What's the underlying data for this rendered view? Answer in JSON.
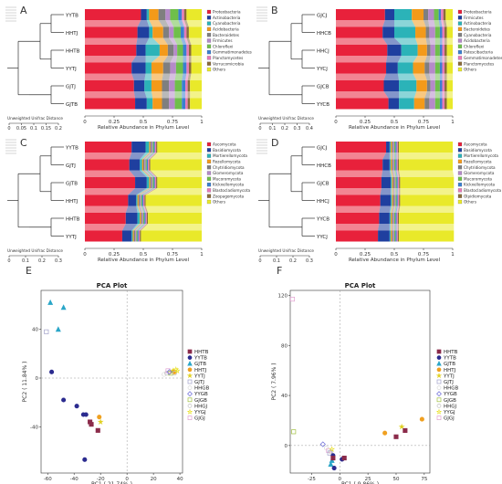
{
  "panels": [
    {
      "letter": "A",
      "samples": [
        "YYTB",
        "HHTJ",
        "HHTB",
        "YYTJ",
        "GJTJ",
        "GJTB"
      ],
      "tree_label": "Unweighted Unifrac Distance",
      "tree_ticks": [
        "0",
        "0.05",
        "0.1",
        "0.15",
        "0.2"
      ],
      "x_ticks": [
        "0",
        "0.25",
        "0.5",
        "0.75",
        "1"
      ],
      "x_label": "Relative Abundance in Phylum Level",
      "legend": [
        "Proteobacteria",
        "Actinobacteria",
        "Cyanobacteria",
        "Acidobacteria",
        "Bacteroidetes",
        "Firmicutes",
        "Chloroflexi",
        "Gemmatimonadetes",
        "Planctomycetes",
        "Verrucomicrobia",
        "Others"
      ],
      "colors": [
        "#e8213b",
        "#1f3f9f",
        "#2bb3b8",
        "#f39a1a",
        "#7f7f7f",
        "#b58ac9",
        "#6fbf4a",
        "#3a7fd0",
        "#e879b7",
        "#8a6b3a",
        "#e9e92a"
      ],
      "bars": [
        [
          0.48,
          0.05,
          0.02,
          0.08,
          0.06,
          0.04,
          0.07,
          0.03,
          0.02,
          0.02,
          0.13
        ],
        [
          0.45,
          0.1,
          0.03,
          0.09,
          0.05,
          0.04,
          0.06,
          0.03,
          0.02,
          0.02,
          0.11
        ],
        [
          0.44,
          0.08,
          0.12,
          0.07,
          0.05,
          0.03,
          0.05,
          0.03,
          0.02,
          0.02,
          0.09
        ],
        [
          0.4,
          0.12,
          0.05,
          0.1,
          0.06,
          0.05,
          0.06,
          0.03,
          0.02,
          0.02,
          0.09
        ],
        [
          0.42,
          0.09,
          0.06,
          0.09,
          0.06,
          0.05,
          0.06,
          0.03,
          0.02,
          0.02,
          0.1
        ],
        [
          0.43,
          0.1,
          0.05,
          0.08,
          0.06,
          0.05,
          0.06,
          0.03,
          0.02,
          0.02,
          0.1
        ]
      ]
    },
    {
      "letter": "B",
      "samples": [
        "GJCJ",
        "HHCB",
        "HHCJ",
        "YYCJ",
        "GJCB",
        "YYCB"
      ],
      "tree_label": "Unweighted Unifrac Distance",
      "tree_ticks": [
        "0",
        "0.1",
        "0.2",
        "0.3",
        "0.4"
      ],
      "x_ticks": [
        "0",
        "0.25",
        "0.5",
        "0.75",
        "1"
      ],
      "x_label": "Relative Abundance in Phylum Level",
      "legend": [
        "Proteobacteria",
        "Firmicutes",
        "Actinobacteria",
        "Bacteroidetes",
        "Cyanobacteria",
        "Acidobacteria",
        "Chloroflexi",
        "Patescibacteria",
        "Gemmatimonadetes",
        "Planctomycetes",
        "Others"
      ],
      "colors": [
        "#e8213b",
        "#1f3f9f",
        "#2bb3b8",
        "#f39a1a",
        "#7f7f7f",
        "#b58ac9",
        "#6fbf4a",
        "#3a7fd0",
        "#e879b7",
        "#8a6b3a",
        "#e9e92a"
      ],
      "bars": [
        [
          0.42,
          0.08,
          0.15,
          0.1,
          0.04,
          0.05,
          0.04,
          0.02,
          0.02,
          0.02,
          0.06
        ],
        [
          0.4,
          0.1,
          0.18,
          0.09,
          0.03,
          0.05,
          0.04,
          0.02,
          0.02,
          0.02,
          0.05
        ],
        [
          0.44,
          0.12,
          0.14,
          0.08,
          0.03,
          0.04,
          0.04,
          0.02,
          0.02,
          0.02,
          0.05
        ],
        [
          0.43,
          0.1,
          0.13,
          0.1,
          0.04,
          0.05,
          0.04,
          0.02,
          0.02,
          0.02,
          0.05
        ],
        [
          0.41,
          0.13,
          0.15,
          0.09,
          0.03,
          0.04,
          0.04,
          0.02,
          0.02,
          0.02,
          0.05
        ],
        [
          0.45,
          0.09,
          0.13,
          0.09,
          0.04,
          0.05,
          0.04,
          0.02,
          0.02,
          0.02,
          0.05
        ]
      ]
    },
    {
      "letter": "C",
      "samples": [
        "YYTB",
        "GJTJ",
        "GJTB",
        "HHTJ",
        "HHTB",
        "YYTJ"
      ],
      "tree_label": "Unweighted Unifrac Distance",
      "tree_ticks": [
        "0",
        "0.1",
        "0.2",
        "0.3"
      ],
      "x_ticks": [
        "0",
        "0.25",
        "0.5",
        "0.75",
        "1"
      ],
      "x_label": "Relative Abundance in Phylum Level",
      "legend": [
        "Ascomycota",
        "Basidiomycota",
        "Mortierellomycota",
        "Rozellomycota",
        "Chytridiomycota",
        "Glomeromycota",
        "Mucoromycota",
        "Kickxellomycota",
        "Blastocladiomycota",
        "Zoopagomycota",
        "Others"
      ],
      "colors": [
        "#e8213b",
        "#1f3f9f",
        "#2bb3b8",
        "#f39a1a",
        "#7f7f7f",
        "#b58ac9",
        "#6fbf4a",
        "#3a7fd0",
        "#e879b7",
        "#8a6b3a",
        "#e9e92a"
      ],
      "bars": [
        [
          0.4,
          0.12,
          0.03,
          0.01,
          0.01,
          0.01,
          0.01,
          0.01,
          0.01,
          0.01,
          0.38
        ],
        [
          0.38,
          0.09,
          0.02,
          0.01,
          0.01,
          0.01,
          0.01,
          0.01,
          0.01,
          0.01,
          0.44
        ],
        [
          0.43,
          0.1,
          0.02,
          0.01,
          0.01,
          0.01,
          0.01,
          0.01,
          0.01,
          0.01,
          0.38
        ],
        [
          0.37,
          0.07,
          0.01,
          0.01,
          0.01,
          0.01,
          0.01,
          0.01,
          0.01,
          0.01,
          0.48
        ],
        [
          0.35,
          0.1,
          0.02,
          0.01,
          0.01,
          0.01,
          0.01,
          0.01,
          0.01,
          0.01,
          0.46
        ],
        [
          0.32,
          0.08,
          0.01,
          0.01,
          0.01,
          0.01,
          0.01,
          0.01,
          0.01,
          0.01,
          0.52
        ]
      ]
    },
    {
      "letter": "D",
      "samples": [
        "GJCJ",
        "HHCB",
        "GJCB",
        "HHCJ",
        "YYCB",
        "YYCJ"
      ],
      "tree_label": "Unweighted Unifrac Distance",
      "tree_ticks": [
        "0",
        "0.1",
        "0.2",
        "0.3"
      ],
      "x_ticks": [
        "0",
        "0.25",
        "0.5",
        "0.75",
        "1"
      ],
      "x_label": "Relative Abundance in Phylum Level",
      "legend": [
        "Ascomycota",
        "Basidiomycota",
        "Mortierellomycota",
        "Rozellomycota",
        "Chytridiomycota",
        "Glomeromycota",
        "Mucoromycota",
        "Kickxellomycota",
        "Blastocladiomycota",
        "Olpidiomycota",
        "Others"
      ],
      "colors": [
        "#e8213b",
        "#1f3f9f",
        "#2bb3b8",
        "#f39a1a",
        "#7f7f7f",
        "#b58ac9",
        "#6fbf4a",
        "#3a7fd0",
        "#e879b7",
        "#8a6b3a",
        "#e9e92a"
      ],
      "bars": [
        [
          0.43,
          0.03,
          0.01,
          0.01,
          0.01,
          0.01,
          0.01,
          0.01,
          0.01,
          0.01,
          0.46
        ],
        [
          0.4,
          0.06,
          0.01,
          0.01,
          0.01,
          0.01,
          0.01,
          0.01,
          0.01,
          0.01,
          0.46
        ],
        [
          0.39,
          0.08,
          0.01,
          0.01,
          0.01,
          0.01,
          0.01,
          0.01,
          0.01,
          0.01,
          0.46
        ],
        [
          0.38,
          0.09,
          0.01,
          0.01,
          0.01,
          0.01,
          0.01,
          0.01,
          0.01,
          0.01,
          0.46
        ],
        [
          0.37,
          0.09,
          0.01,
          0.01,
          0.01,
          0.01,
          0.01,
          0.01,
          0.01,
          0.01,
          0.47
        ],
        [
          0.36,
          0.1,
          0.01,
          0.01,
          0.01,
          0.01,
          0.01,
          0.01,
          0.01,
          0.01,
          0.47
        ]
      ]
    }
  ],
  "chart_data": [
    {
      "type": "scatter",
      "letter": "E",
      "title": "PCA Plot",
      "xlabel": "PC1 ( 21.74% )",
      "ylabel": "PC2 ( 11.84% )",
      "xlim": [
        -65,
        42
      ],
      "ylim": [
        -78,
        72
      ],
      "xticks": [
        -60,
        -40,
        -20,
        0,
        20,
        40
      ],
      "yticks": [
        -40,
        0,
        40
      ],
      "legend": [
        {
          "name": "HHTB",
          "color": "#8b2b4a",
          "marker": "square"
        },
        {
          "name": "YYTB",
          "color": "#2b2b8f",
          "marker": "circle"
        },
        {
          "name": "GJTB",
          "color": "#2aa6c8",
          "marker": "triangle"
        },
        {
          "name": "HHTJ",
          "color": "#f0a020",
          "marker": "circle"
        },
        {
          "name": "YYTJ",
          "color": "#e0d020",
          "marker": "star"
        },
        {
          "name": "GJTJ",
          "color": "#a0a0c8",
          "marker": "square-open"
        },
        {
          "name": "HHGB",
          "color": "#d8d8d8",
          "marker": "circle-open"
        },
        {
          "name": "YYGB",
          "color": "#6a6ad8",
          "marker": "diamond-open"
        },
        {
          "name": "GJGB",
          "color": "#a0c040",
          "marker": "square-open"
        },
        {
          "name": "HHGJ",
          "color": "#c0c0c0",
          "marker": "circle-open"
        },
        {
          "name": "YYGJ",
          "color": "#e8e020",
          "marker": "star-open"
        },
        {
          "name": "GJGJ",
          "color": "#e0a0d0",
          "marker": "square-open"
        }
      ],
      "points": [
        {
          "s": "GJTB",
          "x": -58,
          "y": 62
        },
        {
          "s": "GJTB",
          "x": -48,
          "y": 58
        },
        {
          "s": "GJTB",
          "x": -52,
          "y": 40
        },
        {
          "s": "GJTJ",
          "x": -61,
          "y": 38
        },
        {
          "s": "YYTB",
          "x": -57,
          "y": 5
        },
        {
          "s": "YYTB",
          "x": -48,
          "y": -18
        },
        {
          "s": "YYTB",
          "x": -38,
          "y": -23
        },
        {
          "s": "YYTB",
          "x": -33,
          "y": -30
        },
        {
          "s": "YYTB",
          "x": -31,
          "y": -30
        },
        {
          "s": "HHTB",
          "x": -28,
          "y": -36
        },
        {
          "s": "HHTB",
          "x": -27,
          "y": -38
        },
        {
          "s": "HHTJ",
          "x": -21,
          "y": -32
        },
        {
          "s": "YYTJ",
          "x": -20,
          "y": -36
        },
        {
          "s": "HHTB",
          "x": -22,
          "y": -43
        },
        {
          "s": "YYTB",
          "x": -32,
          "y": -67
        },
        {
          "s": "HHGB",
          "x": 28,
          "y": 3
        },
        {
          "s": "HHGJ",
          "x": 30,
          "y": 4
        },
        {
          "s": "YYGJ",
          "x": 34,
          "y": 5
        },
        {
          "s": "YYTJ",
          "x": 35,
          "y": 6
        },
        {
          "s": "HHTJ",
          "x": 36,
          "y": 5
        },
        {
          "s": "GJGB",
          "x": 33,
          "y": 4
        },
        {
          "s": "YYGJ",
          "x": 37,
          "y": 7
        },
        {
          "s": "GJGJ",
          "x": 31,
          "y": 6
        },
        {
          "s": "YYGB",
          "x": 32,
          "y": 5
        },
        {
          "s": "HHGJ",
          "x": 36,
          "y": 4
        },
        {
          "s": "YYGJ",
          "x": 38,
          "y": 6
        }
      ]
    },
    {
      "type": "scatter",
      "letter": "F",
      "title": "PCA Plot",
      "xlabel": "PC1 ( 9.86% )",
      "ylabel": "PC2 ( 7.96% )",
      "xlim": [
        -44,
        80
      ],
      "ylim": [
        -22,
        124
      ],
      "xticks": [
        -25,
        0,
        25,
        50,
        75
      ],
      "yticks": [
        0,
        40,
        80,
        120
      ],
      "legend": [
        {
          "name": "HHTB",
          "color": "#8b2b4a",
          "marker": "square"
        },
        {
          "name": "YYTB",
          "color": "#2b2b8f",
          "marker": "circle"
        },
        {
          "name": "GJTB",
          "color": "#2aa6c8",
          "marker": "triangle"
        },
        {
          "name": "HHTJ",
          "color": "#f0a020",
          "marker": "circle"
        },
        {
          "name": "YYTJ",
          "color": "#e0d020",
          "marker": "star"
        },
        {
          "name": "GJTJ",
          "color": "#a0a0c8",
          "marker": "square-open"
        },
        {
          "name": "HHGB",
          "color": "#d8d8d8",
          "marker": "circle-open"
        },
        {
          "name": "YYGB",
          "color": "#6a6ad8",
          "marker": "diamond-open"
        },
        {
          "name": "GJGB",
          "color": "#a0c040",
          "marker": "square-open"
        },
        {
          "name": "HHGJ",
          "color": "#c0c0c0",
          "marker": "circle-open"
        },
        {
          "name": "YYGJ",
          "color": "#e8e020",
          "marker": "star-open"
        },
        {
          "name": "GJGJ",
          "color": "#e0a0d0",
          "marker": "square-open"
        }
      ],
      "points": [
        {
          "s": "GJGJ",
          "x": -42,
          "y": 117
        },
        {
          "s": "GJGB",
          "x": -41,
          "y": 11
        },
        {
          "s": "YYGB",
          "x": -15,
          "y": 1
        },
        {
          "s": "HHGB",
          "x": -12,
          "y": -2
        },
        {
          "s": "GJGJ",
          "x": -10,
          "y": -4
        },
        {
          "s": "HHGJ",
          "x": -8,
          "y": -5
        },
        {
          "s": "YYGJ",
          "x": -7,
          "y": -3
        },
        {
          "s": "GJTJ",
          "x": -9,
          "y": -6
        },
        {
          "s": "YYTB",
          "x": -6,
          "y": -8
        },
        {
          "s": "GJTB",
          "x": -7,
          "y": -12
        },
        {
          "s": "GJTB",
          "x": -8,
          "y": -15
        },
        {
          "s": "YYTB",
          "x": -5,
          "y": -18
        },
        {
          "s": "HHTB",
          "x": -6,
          "y": -10
        },
        {
          "s": "YYTB",
          "x": 2,
          "y": -11
        },
        {
          "s": "HHTB",
          "x": 4,
          "y": -10
        },
        {
          "s": "HHTJ",
          "x": 40,
          "y": 10
        },
        {
          "s": "HHTB",
          "x": 50,
          "y": 7
        },
        {
          "s": "YYTJ",
          "x": 55,
          "y": 15
        },
        {
          "s": "HHTB",
          "x": 58,
          "y": 12
        },
        {
          "s": "HHTJ",
          "x": 73,
          "y": 21
        }
      ]
    }
  ]
}
